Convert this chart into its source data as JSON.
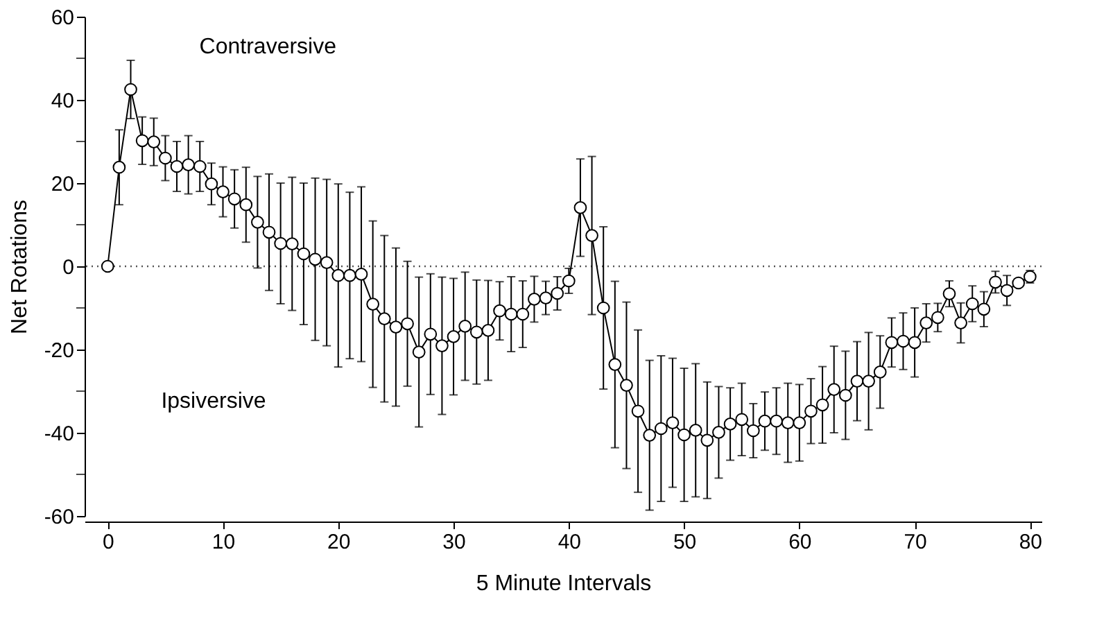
{
  "chart_data": {
    "type": "line",
    "xlabel": "5 Minute Intervals",
    "ylabel": "Net Rotations",
    "annotations": [
      "Contraversive",
      "Ipsiversive"
    ],
    "x": [
      0,
      1,
      2,
      3,
      4,
      5,
      6,
      7,
      8,
      9,
      10,
      11,
      12,
      13,
      14,
      15,
      16,
      17,
      18,
      19,
      20,
      21,
      22,
      23,
      24,
      25,
      26,
      27,
      28,
      29,
      30,
      31,
      32,
      33,
      34,
      35,
      36,
      37,
      38,
      39,
      40,
      41,
      42,
      43,
      44,
      45,
      46,
      47,
      48,
      49,
      50,
      51,
      52,
      53,
      54,
      55,
      56,
      57,
      58,
      59,
      60,
      61,
      62,
      63,
      64,
      65,
      66,
      67,
      68,
      69,
      70,
      71,
      72,
      73,
      74,
      75,
      76,
      77,
      78,
      79,
      80
    ],
    "series": [
      {
        "color": "#000000",
        "values": [
          0,
          23.8,
          42.5,
          30.2,
          29.9,
          26,
          24,
          24.4,
          24,
          19.8,
          17.9,
          16.2,
          14.8,
          10.6,
          8.2,
          5.5,
          5.4,
          3,
          1.7,
          0.9,
          -2.2,
          -2.2,
          -1.9,
          -9.1,
          -12.6,
          -14.6,
          -13.8,
          -20.6,
          -16.3,
          -19.1,
          -16.9,
          -14.4,
          -15.8,
          -15.4,
          -10.7,
          -11.5,
          -11.5,
          -7.9,
          -7.6,
          -6.5,
          -3.5,
          14.1,
          7.4,
          -10,
          -23.6,
          -28.6,
          -34.8,
          -40.6,
          -39,
          -37.6,
          -40.5,
          -39.4,
          -41.8,
          -39.9,
          -37.9,
          -36.8,
          -39.5,
          -37.2,
          -37.2,
          -37.6,
          -37.6,
          -34.8,
          -33.3,
          -29.6,
          -31,
          -27.6,
          -27.6,
          -25.4,
          -18.3,
          -18,
          -18.3,
          -13.6,
          -12.3,
          -6.6,
          -13.6,
          -9,
          -10.3,
          -3.8,
          -5.8,
          -4,
          -2.5
        ],
        "errors": [
          null,
          9,
          7,
          5.7,
          5.7,
          5.4,
          6,
          7,
          6,
          5,
          6,
          7,
          9,
          11,
          14,
          14.5,
          16,
          17,
          19.5,
          20,
          22,
          20,
          21,
          20,
          20,
          19,
          15,
          18,
          14.5,
          16.5,
          14,
          13,
          12.5,
          12,
          7,
          9,
          8,
          5.5,
          4,
          4,
          3,
          11.7,
          19,
          19.5,
          20,
          20,
          19.5,
          18,
          17.5,
          15.5,
          16,
          16,
          14,
          11,
          8.7,
          8.7,
          6.5,
          7,
          8,
          9.5,
          9.2,
          7.8,
          9.2,
          10.4,
          10.6,
          9.5,
          11.7,
          8.7,
          5.9,
          6.8,
          8.3,
          4.6,
          3.4,
          3.1,
          4.8,
          4.3,
          4.2,
          2.6,
          3.6,
          1,
          1.5
        ]
      }
    ],
    "xlim": [
      -2,
      81
    ],
    "ylim": [
      -60,
      60
    ],
    "xticks": [
      0,
      10,
      20,
      30,
      40,
      50,
      60,
      70,
      80
    ],
    "yticks": [
      -60,
      {
        "value": -50,
        "label": null
      },
      -40,
      {
        "value": -30,
        "label": null
      },
      -20,
      {
        "value": -10,
        "label": null
      },
      0,
      {
        "value": 10,
        "label": null
      },
      20,
      {
        "value": 30,
        "label": null
      },
      40,
      {
        "value": 50,
        "label": null
      },
      60
    ],
    "ref_lines": [
      {
        "axis": "y",
        "value": 0,
        "line_style": "dotted",
        "color": "#555555"
      }
    ],
    "marker": "circle",
    "line_style": "solid",
    "grid": false
  }
}
